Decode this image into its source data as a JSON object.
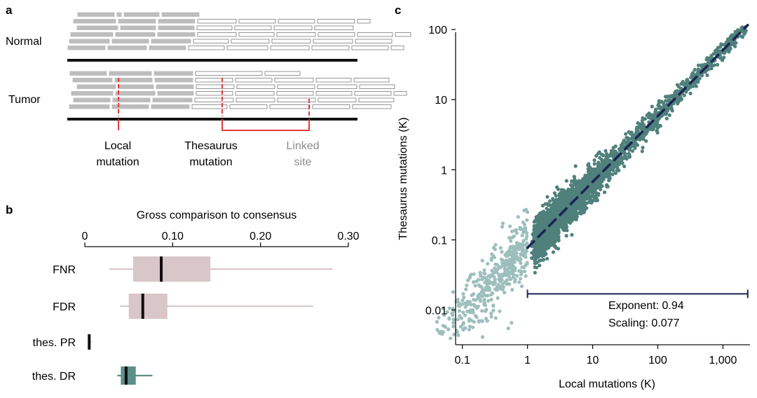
{
  "panel_a": {
    "letter": "a",
    "track_labels": {
      "normal": "Normal",
      "tumor": "Tumor"
    },
    "annotations": {
      "local_line1": "Local",
      "local_line2": "mutation",
      "thesaurus_line1": "Thesaurus",
      "thesaurus_line2": "mutation",
      "linked_line1": "Linked",
      "linked_line2": "site"
    },
    "colors": {
      "read_fill": "#bdbdbd",
      "read_outline": "#8a8a8a",
      "mutation": "#e23b3b",
      "linked_text": "#8c8c8c"
    }
  },
  "panel_b": {
    "letter": "b",
    "axis_title": "Gross comparison to consensus",
    "ticks": [
      {
        "value": 0,
        "label": "0"
      },
      {
        "value": 0.1,
        "label": "0.10"
      },
      {
        "value": 0.2,
        "label": "0.20"
      },
      {
        "value": 0.3,
        "label": "0.30"
      }
    ],
    "rows": [
      {
        "label": "FNR",
        "whisker_low": 0.028,
        "q1": 0.055,
        "median": 0.087,
        "q3": 0.143,
        "whisker_high": 0.282,
        "color": "#d9c6c8",
        "whisker_color": "#dcc8ca"
      },
      {
        "label": "FDR",
        "whisker_low": 0.04,
        "q1": 0.05,
        "median": 0.066,
        "q3": 0.094,
        "whisker_high": 0.26,
        "color": "#d9c6c8",
        "whisker_color": "#dcc8ca"
      },
      {
        "label": "thes. PR",
        "whisker_low": 0.004,
        "q1": 0.004,
        "median": 0.005,
        "q3": 0.006,
        "whisker_high": 0.007,
        "color": "#5d8f8a",
        "whisker_color": "#5d8f8a"
      },
      {
        "label": "thes. DR",
        "whisker_low": 0.037,
        "q1": 0.041,
        "median": 0.047,
        "q3": 0.058,
        "whisker_high": 0.077,
        "color": "#5d8f8a",
        "whisker_color": "#5d8f8a"
      }
    ]
  },
  "panel_c": {
    "letter": "c",
    "chart_data": {
      "type": "scatter",
      "xscale": "log",
      "yscale": "log",
      "xlabel": "Local mutations (K)",
      "ylabel": "Thesaurus mutations (K)",
      "xlim": [
        0.03,
        2600
      ],
      "ylim": [
        0.0035,
        110
      ],
      "xticks": [
        {
          "value": 0.1,
          "label": "0.1"
        },
        {
          "value": 1,
          "label": "1"
        },
        {
          "value": 10,
          "label": "10"
        },
        {
          "value": 100,
          "label": "100"
        },
        {
          "value": 1000,
          "label": "1,000"
        }
      ],
      "yticks": [
        {
          "value": 0.01,
          "label": "0.01"
        },
        {
          "value": 0.1,
          "label": "0.1"
        },
        {
          "value": 1,
          "label": "1"
        },
        {
          "value": 10,
          "label": "10"
        },
        {
          "value": 100,
          "label": "100"
        }
      ],
      "fit": {
        "exponent": 0.94,
        "scaling": 0.077,
        "x_from": 1,
        "x_to": 2400
      },
      "fit_range_bar": {
        "x_from": 1,
        "x_to": 2400,
        "y": 0.017
      },
      "legend_exponent": "Exponent: 0.94",
      "legend_scaling": "Scaling: 0.077",
      "colors": {
        "low_mutation": "#9dbfbc",
        "high_mutation": "#4f807c",
        "fit_line": "#1c2452"
      },
      "series": [
        {
          "name": "below 1K local mutations (light)",
          "n_points": 420,
          "x_range": [
            0.035,
            1
          ]
        },
        {
          "name": "above 1K local mutations (dark)",
          "n_points": 3200,
          "x_range": [
            1,
            2500
          ]
        }
      ]
    }
  }
}
